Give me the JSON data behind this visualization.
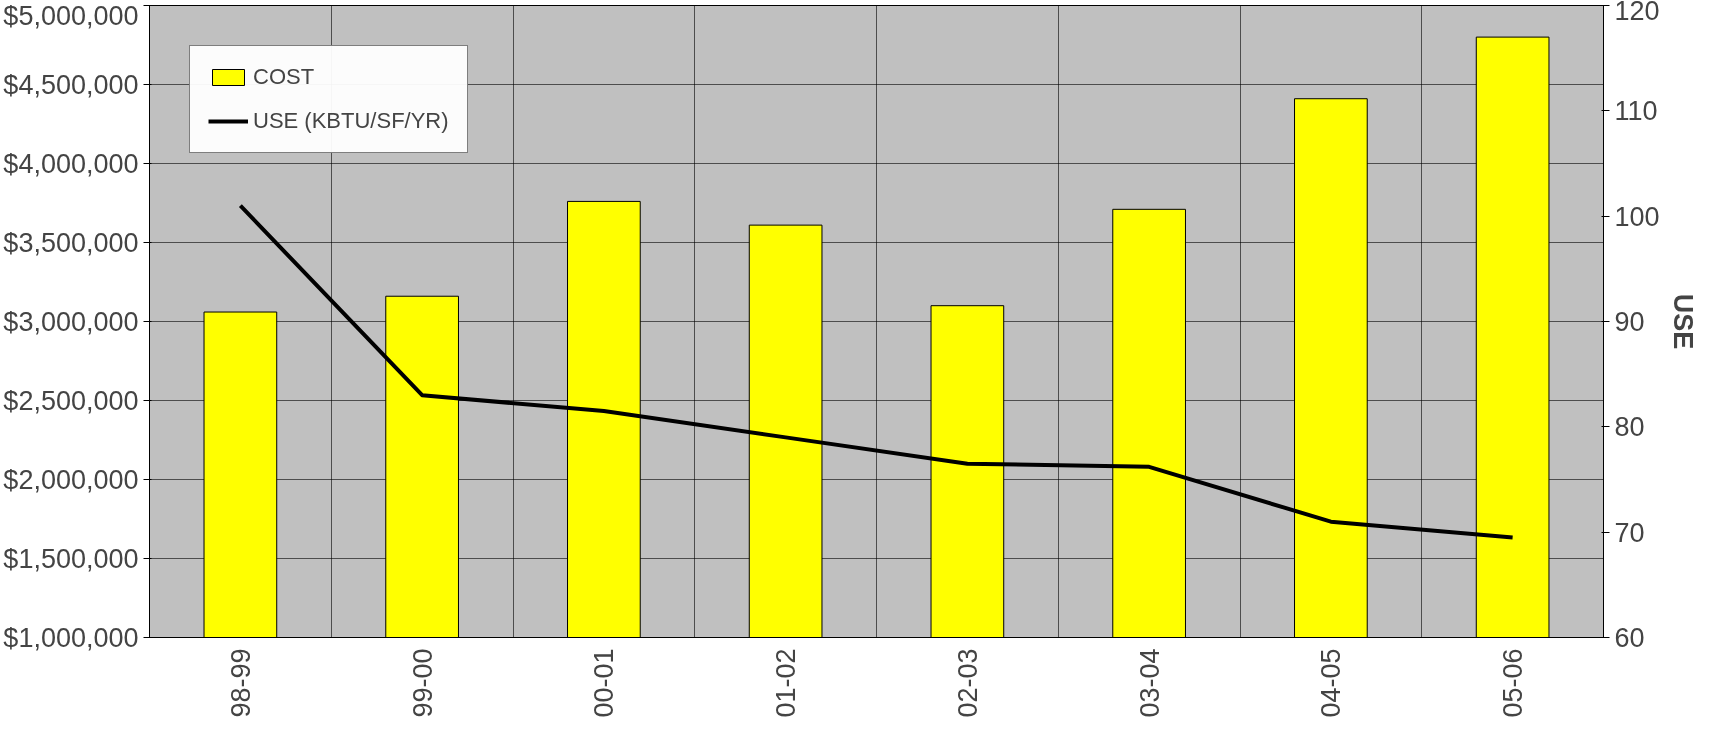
{
  "chart_data": {
    "type": "bar",
    "categories": [
      "98-99",
      "99-00",
      "00-01",
      "01-02",
      "02-03",
      "03-04",
      "04-05",
      "05-06"
    ],
    "series": [
      {
        "name": "COST",
        "color": "#ffff00",
        "values": [
          3060000,
          3160000,
          3760000,
          3610000,
          3100000,
          3710000,
          4410000,
          4800000
        ]
      },
      {
        "name": "USE (KBTU/SF/YR)",
        "type": "line",
        "axis": "y2",
        "color": "#000000",
        "values": [
          101,
          83,
          81.5,
          79,
          76.5,
          76.2,
          71,
          69.5
        ]
      }
    ],
    "ylim": [
      1000000,
      5000000
    ],
    "yticks": [
      {
        "value": 1000000,
        "label": "$1,000,000"
      },
      {
        "value": 1500000,
        "label": "$1,500,000"
      },
      {
        "value": 2000000,
        "label": "$2,000,000"
      },
      {
        "value": 2500000,
        "label": "$2,500,000"
      },
      {
        "value": 3000000,
        "label": "$3,000,000"
      },
      {
        "value": 3500000,
        "label": "$3,500,000"
      },
      {
        "value": 4000000,
        "label": "$4,000,000"
      },
      {
        "value": 4500000,
        "label": "$4,500,000"
      },
      {
        "value": 5000000,
        "label": "$5,000,000"
      }
    ],
    "y2lim": [
      60,
      120
    ],
    "y2ticks": [
      60,
      70,
      80,
      90,
      100,
      110,
      120
    ],
    "y2label": "USE",
    "grid": true,
    "legend": "top left",
    "line_style": "solid",
    "marker": "none"
  }
}
